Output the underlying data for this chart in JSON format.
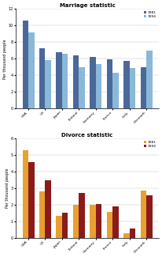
{
  "countries": [
    "USA",
    "UK",
    "Japan",
    "Finland",
    "Germany",
    "France",
    "Italy",
    "Denmark"
  ],
  "marriage_1981": [
    10.6,
    7.3,
    6.8,
    6.4,
    6.2,
    5.9,
    5.7,
    5.0
  ],
  "marriage_1994": [
    9.2,
    5.8,
    6.6,
    5.0,
    5.4,
    4.3,
    4.9,
    7.0
  ],
  "divorce_1981": [
    5.3,
    2.8,
    1.35,
    2.0,
    2.0,
    1.6,
    0.3,
    2.85
  ],
  "divorce_1994": [
    4.6,
    3.5,
    1.55,
    2.7,
    2.05,
    1.9,
    0.6,
    2.6
  ],
  "marriage_color_1981": "#4a6899",
  "marriage_color_1994": "#8ab8d8",
  "divorce_color_1981": "#e8a030",
  "divorce_color_1994": "#8b1a1a",
  "marriage_title": "Marriage statistic",
  "divorce_title": "Divorce statistic",
  "ylabel": "Per thousand people",
  "marriage_ylim": [
    0,
    12
  ],
  "divorce_ylim": [
    0,
    6
  ],
  "legend_1981": "1981",
  "legend_1994": "1994"
}
